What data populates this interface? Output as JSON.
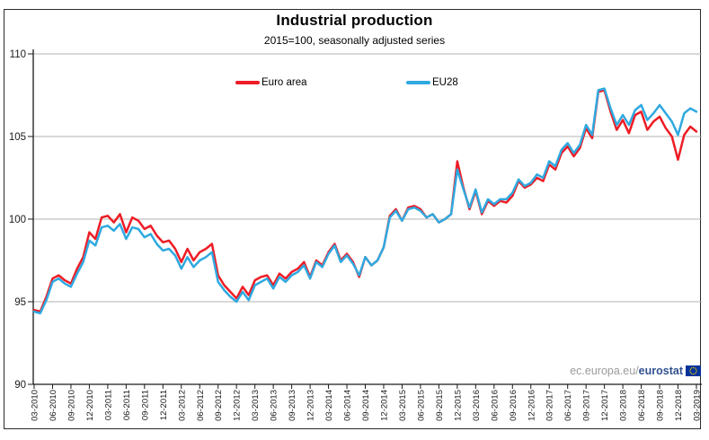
{
  "header": {
    "title": "Industrial production",
    "subtitle": "2015=100, seasonally adjusted series"
  },
  "watermark": {
    "prefix": "ec.europa.eu/",
    "brand": "eurostat",
    "flag_icon": "eu-flag-icon",
    "flag_blue": "#003399",
    "flag_star_color": "#ffcc00"
  },
  "chart_data": {
    "type": "line",
    "title": "Industrial production",
    "subtitle": "2015=100, seasonally adjusted series",
    "ylim": [
      90,
      110
    ],
    "yticks": [
      90,
      95,
      100,
      105,
      110
    ],
    "grid": "horizontal",
    "legend_position": "top-center",
    "x_tick_labels": [
      "03-2010",
      "06-2010",
      "09-2010",
      "12-2010",
      "03-2011",
      "06-2011",
      "09-2011",
      "12-2011",
      "03-2012",
      "06-2012",
      "09-2012",
      "12-2012",
      "03-2013",
      "06-2013",
      "09-2013",
      "12-2013",
      "03-2014",
      "06-2014",
      "09-2014",
      "12-2014",
      "03-2015",
      "06-2015",
      "09-2015",
      "12-2015",
      "03-2016",
      "06-2016",
      "09-2016",
      "12-2016",
      "03-2017",
      "06-2017",
      "09-2017",
      "12-2017",
      "03-2018",
      "06-2018",
      "09-2018",
      "12-2018",
      "03-2019"
    ],
    "x_months_per_point": 1,
    "gridline_color": "#b3b3b3",
    "axis_color": "#1a1a1a",
    "series": [
      {
        "name": "Euro area",
        "color": "#ee1c25",
        "values": [
          94.5,
          94.4,
          95.3,
          96.4,
          96.6,
          96.3,
          96.1,
          97.0,
          97.7,
          99.2,
          98.8,
          100.1,
          100.2,
          99.8,
          100.3,
          99.2,
          100.1,
          99.9,
          99.4,
          99.6,
          99.0,
          98.6,
          98.7,
          98.2,
          97.4,
          98.2,
          97.5,
          98.0,
          98.2,
          98.5,
          96.6,
          96.0,
          95.6,
          95.2,
          95.9,
          95.4,
          96.3,
          96.5,
          96.6,
          96.0,
          96.7,
          96.4,
          96.8,
          97.0,
          97.4,
          96.5,
          97.5,
          97.2,
          98.0,
          98.5,
          97.5,
          97.9,
          97.4,
          96.5,
          97.7,
          97.2,
          97.5,
          98.3,
          100.2,
          100.6,
          99.9,
          100.7,
          100.8,
          100.6,
          100.1,
          100.3,
          99.8,
          100.0,
          100.3,
          103.5,
          101.9,
          100.6,
          101.7,
          100.3,
          101.1,
          100.8,
          101.1,
          101.0,
          101.4,
          102.3,
          101.9,
          102.1,
          102.5,
          102.3,
          103.3,
          103.0,
          104.0,
          104.4,
          103.8,
          104.3,
          105.5,
          104.9,
          107.7,
          107.8,
          106.5,
          105.4,
          106.0,
          105.2,
          106.3,
          106.5,
          105.4,
          105.9,
          106.2,
          105.5,
          105.0,
          103.6,
          105.1,
          105.6,
          105.3
        ]
      },
      {
        "name": "EU28",
        "color": "#2fa9e0",
        "values": [
          94.4,
          94.3,
          95.1,
          96.2,
          96.4,
          96.1,
          95.9,
          96.7,
          97.4,
          98.7,
          98.4,
          99.5,
          99.6,
          99.3,
          99.7,
          98.8,
          99.5,
          99.4,
          98.9,
          99.1,
          98.5,
          98.1,
          98.2,
          97.8,
          97.0,
          97.7,
          97.1,
          97.5,
          97.7,
          98.0,
          96.2,
          95.7,
          95.3,
          95.0,
          95.6,
          95.1,
          96.0,
          96.2,
          96.4,
          95.8,
          96.5,
          96.2,
          96.6,
          96.8,
          97.2,
          96.4,
          97.4,
          97.1,
          97.9,
          98.4,
          97.4,
          97.8,
          97.3,
          96.6,
          97.7,
          97.2,
          97.5,
          98.3,
          100.1,
          100.5,
          99.9,
          100.6,
          100.7,
          100.5,
          100.1,
          100.3,
          99.8,
          100.0,
          100.3,
          103.0,
          101.8,
          100.7,
          101.8,
          100.4,
          101.2,
          100.9,
          101.2,
          101.2,
          101.6,
          102.4,
          102.0,
          102.2,
          102.7,
          102.5,
          103.5,
          103.2,
          104.2,
          104.6,
          104.0,
          104.5,
          105.7,
          105.1,
          107.8,
          107.9,
          106.7,
          105.7,
          106.3,
          105.7,
          106.6,
          106.9,
          106.0,
          106.4,
          106.9,
          106.4,
          105.9,
          105.1,
          106.4,
          106.7,
          106.5
        ]
      }
    ]
  }
}
